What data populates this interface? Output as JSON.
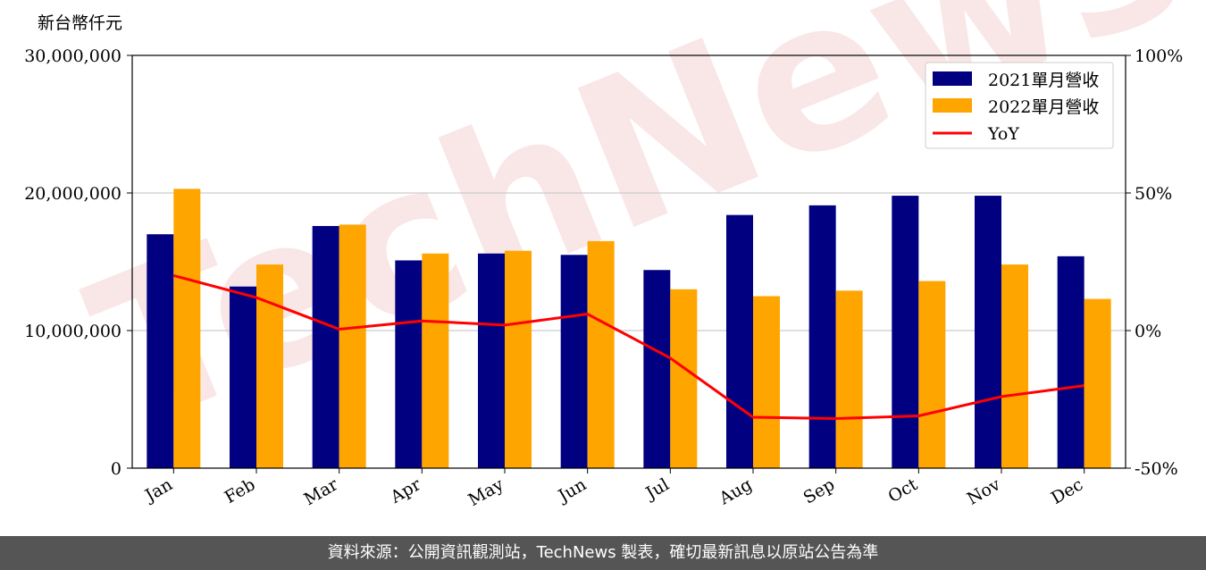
{
  "chart_data": {
    "type": "bar",
    "unit_label": "新台幣仟元",
    "categories": [
      "Jan",
      "Feb",
      "Mar",
      "Apr",
      "May",
      "Jun",
      "Jul",
      "Aug",
      "Sep",
      "Oct",
      "Nov",
      "Dec"
    ],
    "series": [
      {
        "name": "2021單月營收",
        "color": "#000080",
        "values": [
          17000000,
          13200000,
          17600000,
          15100000,
          15600000,
          15500000,
          14400000,
          18400000,
          19100000,
          19800000,
          19800000,
          15400000
        ]
      },
      {
        "name": "2022單月營收",
        "color": "#ffa500",
        "values": [
          20300000,
          14800000,
          17700000,
          15600000,
          15800000,
          16500000,
          13000000,
          12500000,
          12900000,
          13600000,
          14800000,
          12300000
        ]
      }
    ],
    "line_series": {
      "name": "YoY",
      "color": "#ff0000",
      "axis": "right",
      "values": [
        20,
        12,
        0.5,
        3.5,
        2,
        6,
        -10,
        -31.5,
        -32,
        -31,
        -24,
        -20
      ]
    },
    "ylim": [
      0,
      30000000
    ],
    "y_ticks": [
      "0",
      "10,000,000",
      "20,000,000",
      "30,000,000"
    ],
    "y2lim": [
      -50,
      100
    ],
    "y2_ticks": [
      "-50%",
      "0%",
      "50%",
      "100%"
    ],
    "grid": "horizontal",
    "legend": "top-right",
    "watermark": "TechNews"
  },
  "footer": "資料來源：公開資訊觀測站，TechNews 製表，確切最新訊息以原站公告為準"
}
